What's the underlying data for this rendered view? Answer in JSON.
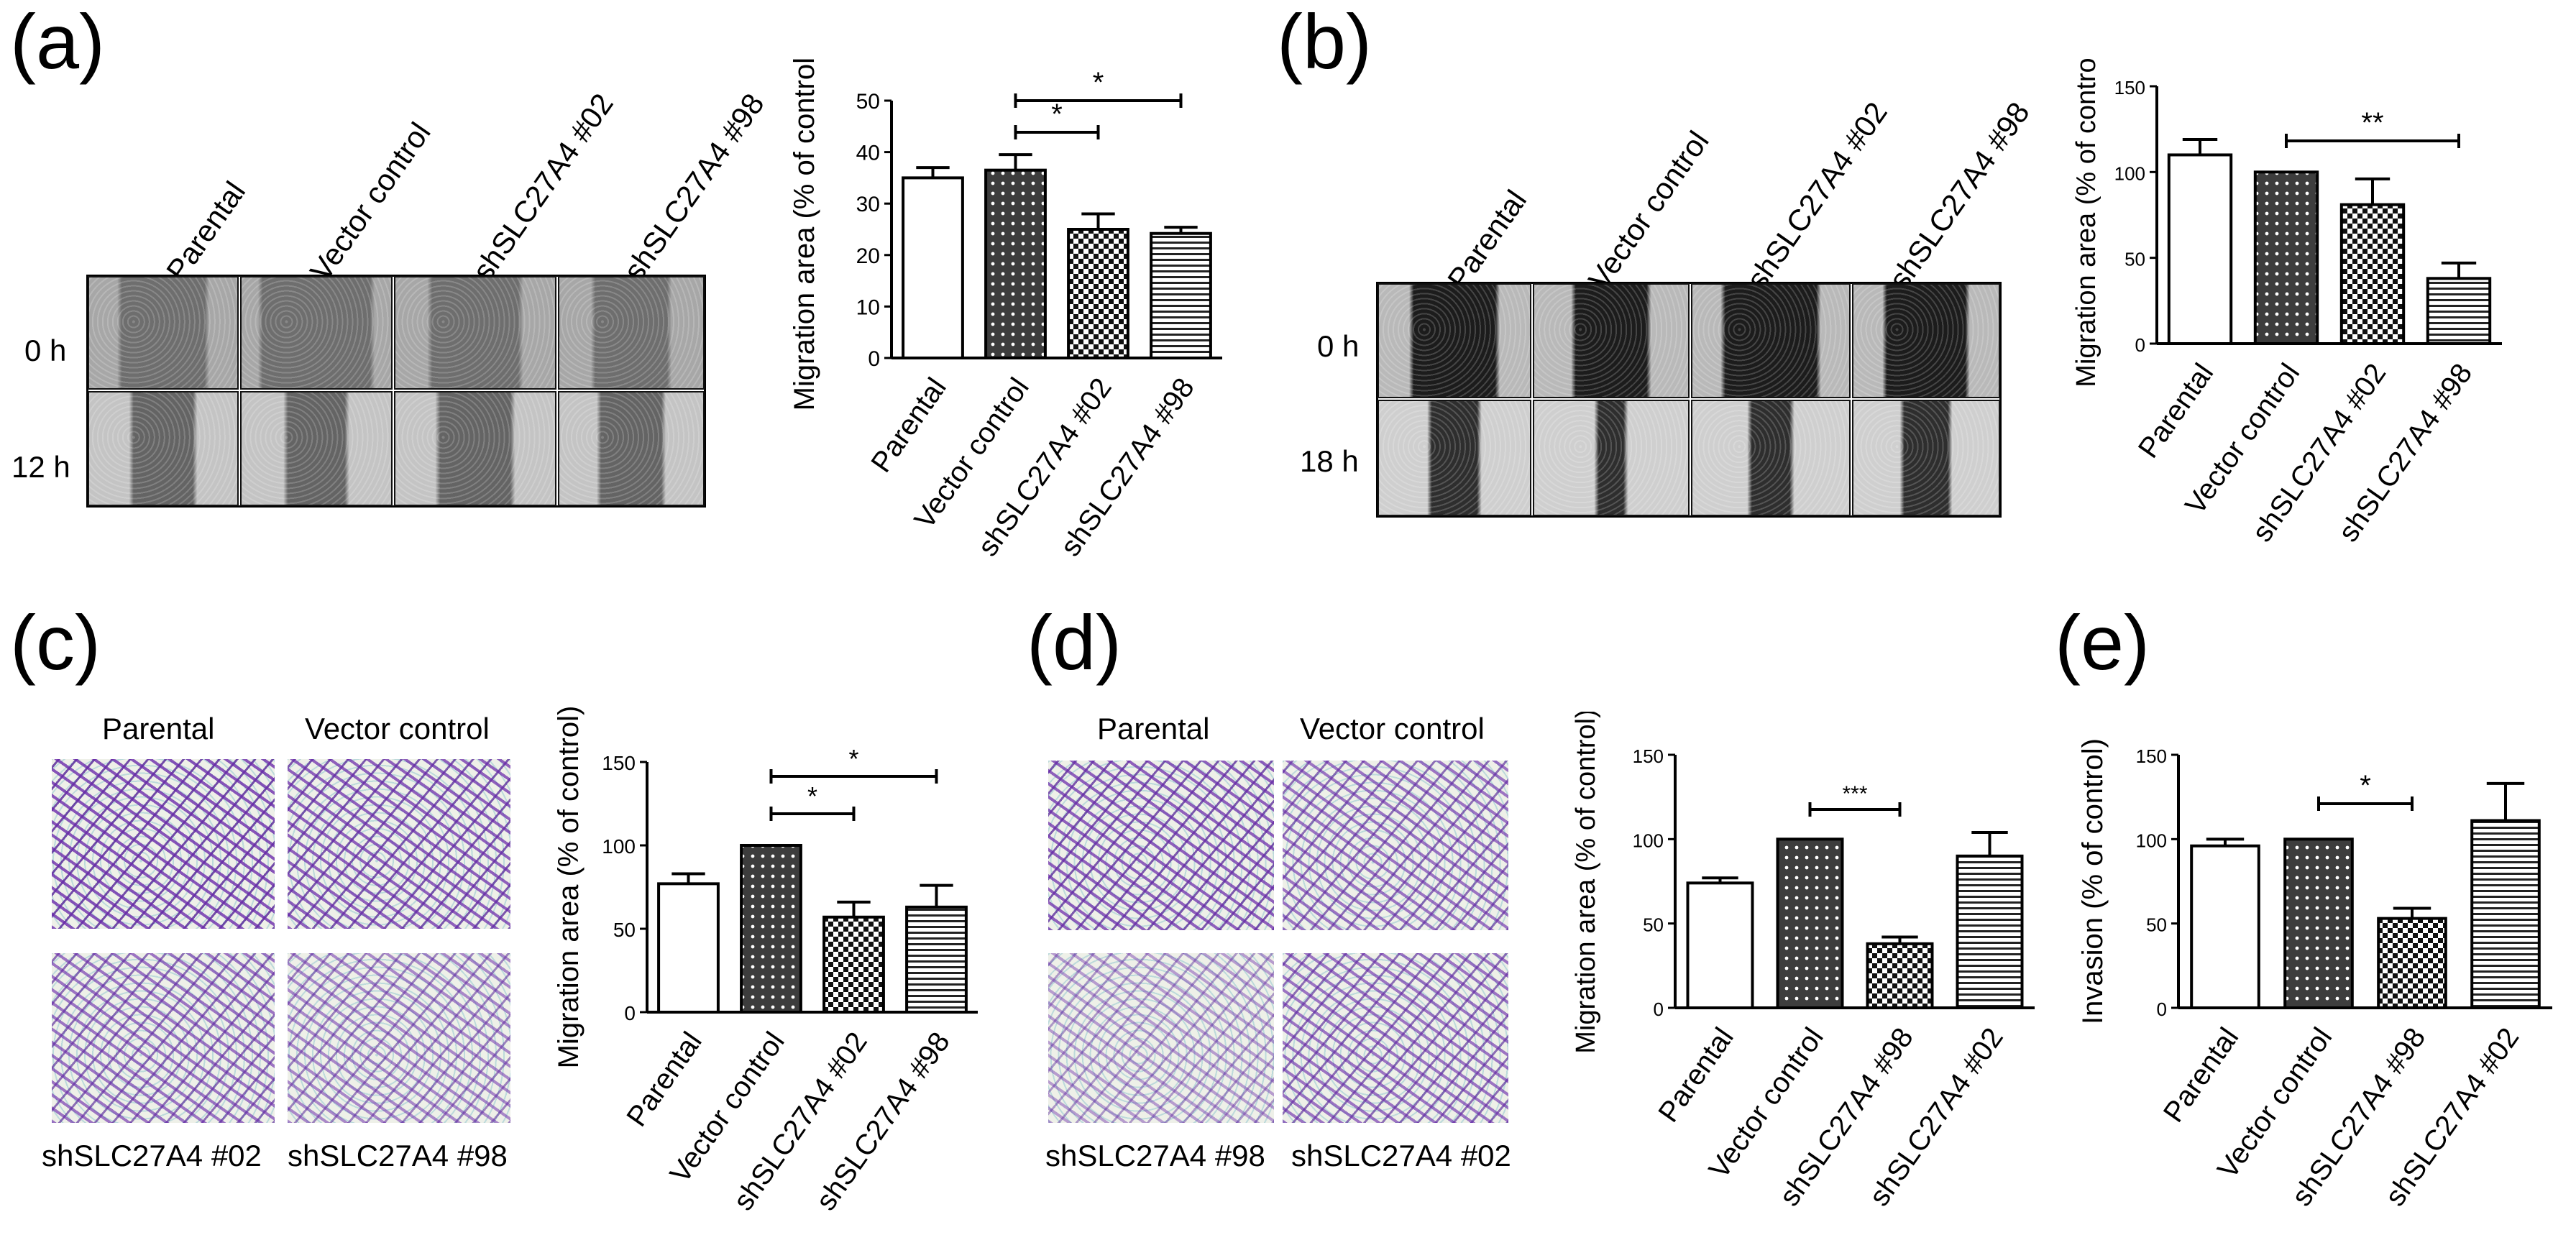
{
  "panels": {
    "a": {
      "letter": "(a)",
      "conditions": [
        "Parental",
        "Vector control",
        "shSLC27A4 #02",
        "shSLC27A4 #98"
      ],
      "times": [
        "0 h",
        "12 h"
      ]
    },
    "b": {
      "letter": "(b)",
      "conditions": [
        "Parental",
        "Vector control",
        "shSLC27A4 #02",
        "shSLC27A4 #98"
      ],
      "times": [
        "0 h",
        "18 h"
      ]
    },
    "c": {
      "letter": "(c)",
      "top_labels": [
        "Parental",
        "Vector control"
      ],
      "bottom_labels": [
        "shSLC27A4 #02",
        "shSLC27A4 #98"
      ]
    },
    "d": {
      "letter": "(d)",
      "top_labels": [
        "Parental",
        "Vector control"
      ],
      "bottom_labels": [
        "shSLC27A4 #98",
        "shSLC27A4 #02"
      ]
    },
    "e": {
      "letter": "(e)"
    }
  },
  "chart_data": [
    {
      "id": "a",
      "type": "bar",
      "categories": [
        "Parental",
        "Vector control",
        "shSLC27A4 #02",
        "shSLC27A4 #98"
      ],
      "values": [
        35,
        36.5,
        25,
        24.2
      ],
      "errors": [
        2,
        3,
        3,
        1.2
      ],
      "patterns": [
        "white",
        "dots",
        "checker",
        "hlines"
      ],
      "ylabel": "Migration area (% of control)",
      "ylim": [
        0,
        50
      ],
      "yticks": [
        0,
        10,
        20,
        30,
        40,
        50
      ],
      "significance": [
        {
          "from": 1,
          "to": 2,
          "label": "*"
        },
        {
          "from": 1,
          "to": 3,
          "label": "*"
        }
      ]
    },
    {
      "id": "b",
      "type": "bar",
      "categories": [
        "Parental",
        "Vector control",
        "shSLC27A4 #02",
        "shSLC27A4 #98"
      ],
      "values": [
        110,
        100,
        81,
        38
      ],
      "errors": [
        9,
        0,
        15,
        9
      ],
      "patterns": [
        "white",
        "dots",
        "checker",
        "hlines"
      ],
      "ylabel": "Migration area (% of control)",
      "ylim": [
        0,
        150
      ],
      "yticks": [
        0,
        50,
        100,
        150
      ],
      "significance": [
        {
          "from": 1,
          "to": 3,
          "label": "**"
        }
      ]
    },
    {
      "id": "c",
      "type": "bar",
      "categories": [
        "Parental",
        "Vector control",
        "shSLC27A4 #02",
        "shSLC27A4 #98"
      ],
      "values": [
        77,
        100,
        57,
        63
      ],
      "errors": [
        6,
        0,
        9,
        13
      ],
      "patterns": [
        "white",
        "dots",
        "checker",
        "hlines"
      ],
      "ylabel": "Migration area (% of control)",
      "ylim": [
        0,
        150
      ],
      "yticks": [
        0,
        50,
        100,
        150
      ],
      "significance": [
        {
          "from": 1,
          "to": 2,
          "label": "*"
        },
        {
          "from": 1,
          "to": 3,
          "label": "*"
        }
      ]
    },
    {
      "id": "d",
      "type": "bar",
      "categories": [
        "Parental",
        "Vector control",
        "shSLC27A4 #98",
        "shSLC27A4 #02"
      ],
      "values": [
        74,
        100,
        38,
        90
      ],
      "errors": [
        3,
        0,
        4,
        14
      ],
      "patterns": [
        "white",
        "dots",
        "checker",
        "hlines"
      ],
      "ylabel": "Migration area (% of control)",
      "ylim": [
        0,
        150
      ],
      "yticks": [
        0,
        50,
        100,
        150
      ],
      "significance": [
        {
          "from": 1,
          "to": 2,
          "label": "***"
        }
      ]
    },
    {
      "id": "e",
      "type": "bar",
      "categories": [
        "Parental",
        "Vector control",
        "shSLC27A4 #98",
        "shSLC27A4 #02"
      ],
      "values": [
        96,
        100,
        53,
        111
      ],
      "errors": [
        4,
        0,
        6,
        22
      ],
      "patterns": [
        "white",
        "dots",
        "checker",
        "hlines"
      ],
      "ylabel": "Invasion  (% of control)",
      "ylim": [
        0,
        150
      ],
      "yticks": [
        0,
        50,
        100,
        150
      ],
      "significance": [
        {
          "from": 1,
          "to": 2,
          "label": "*"
        }
      ]
    }
  ]
}
